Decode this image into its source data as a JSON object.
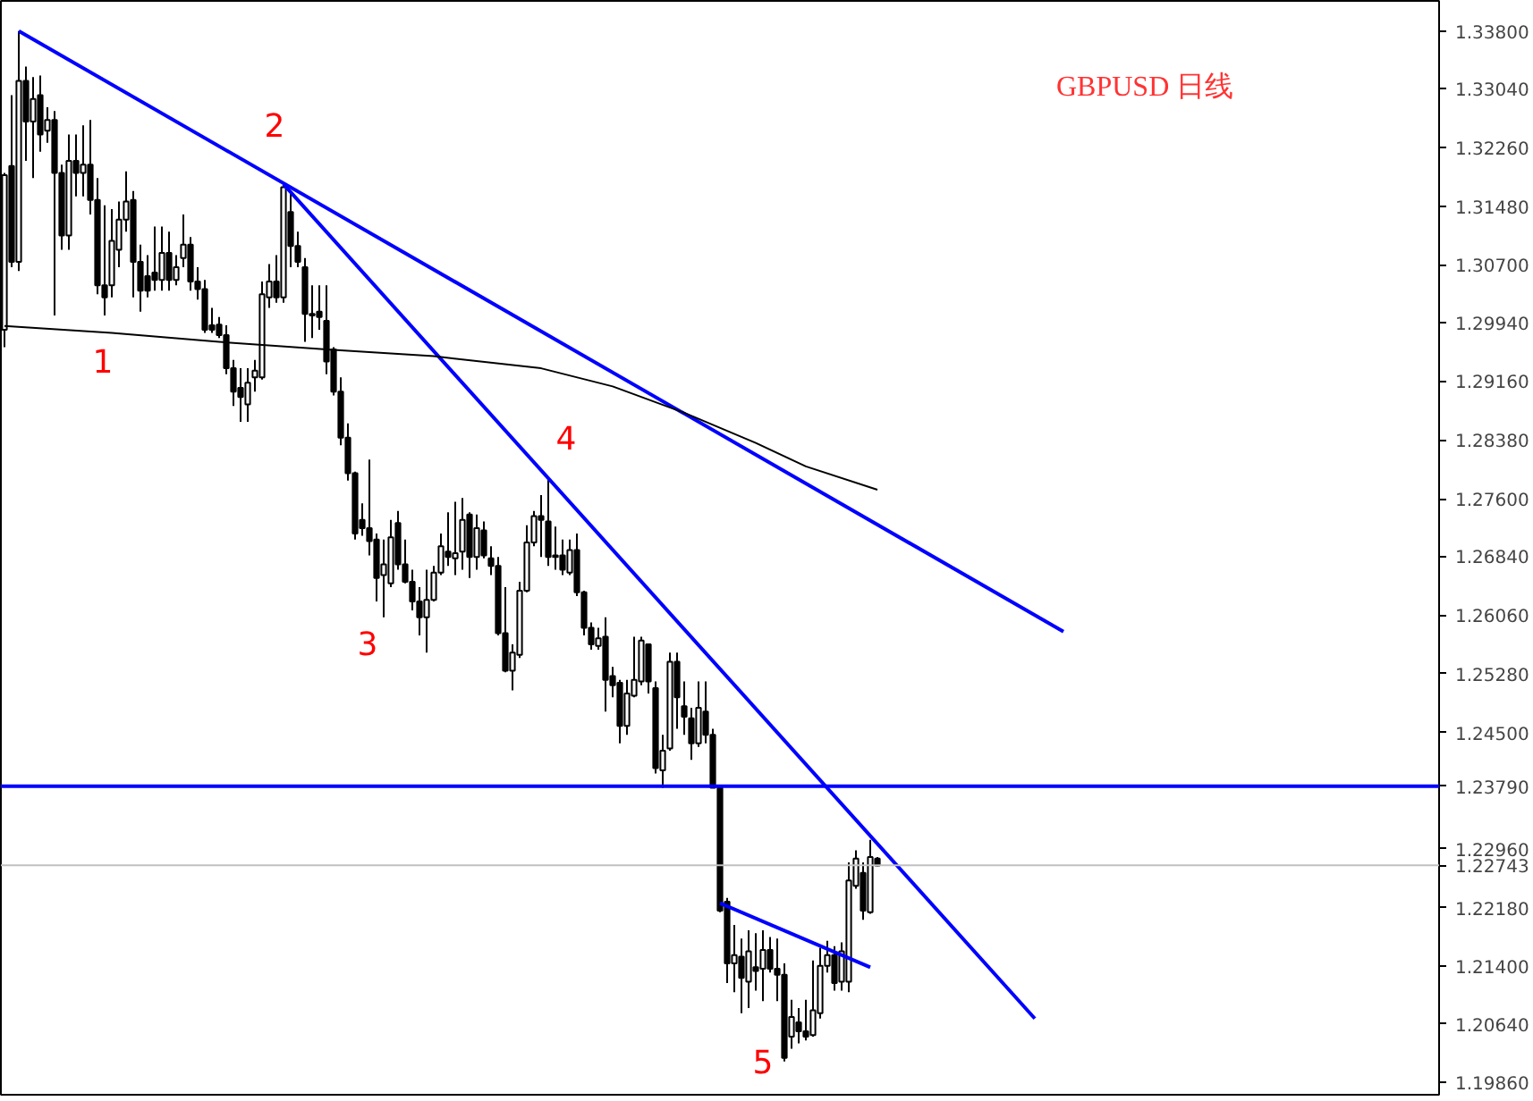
{
  "chart_data": {
    "type": "candlestick",
    "title": "GBPUSD 日线",
    "categories": [
      null,
      null,
      null,
      null,
      null,
      null,
      null,
      null,
      null,
      null,
      null,
      null,
      null,
      null,
      null,
      null,
      null,
      null,
      null,
      null,
      null,
      null,
      null,
      null,
      null,
      null,
      null,
      null,
      null,
      null,
      null,
      null,
      null,
      null,
      null,
      null,
      null,
      null,
      null,
      null,
      null,
      null,
      null,
      null,
      null,
      null,
      null,
      null,
      null,
      null,
      null,
      null,
      null,
      null,
      null,
      null,
      null,
      null,
      null,
      null,
      null,
      null,
      null,
      null,
      null,
      null,
      null,
      null,
      null,
      null,
      null,
      null,
      null,
      null,
      null,
      null,
      null,
      null,
      null,
      null,
      null,
      null,
      null,
      null,
      null,
      null,
      null,
      null,
      null,
      null,
      null,
      null,
      null,
      null,
      null,
      null,
      null,
      null,
      null,
      null,
      null,
      null,
      null,
      null,
      null,
      null,
      null,
      null,
      null,
      null,
      null,
      null,
      null,
      null,
      null,
      null,
      null,
      null,
      null,
      null,
      null,
      null,
      null,
      null,
      null,
      null,
      null,
      null,
      null,
      null,
      null,
      null,
      null,
      null,
      null,
      null,
      null,
      null,
      null,
      null,
      null,
      null,
      null,
      null,
      null,
      null,
      null,
      null,
      null,
      null,
      null,
      null,
      null,
      null,
      null,
      null,
      null,
      null,
      null,
      null,
      null,
      null,
      null,
      null,
      null,
      null,
      null,
      null,
      null,
      null,
      null,
      null,
      null,
      null,
      null,
      null,
      null,
      null,
      null,
      null,
      null,
      null,
      null,
      null,
      null,
      null,
      null,
      null,
      null,
      null,
      null,
      null,
      null,
      null,
      null,
      null,
      null,
      null,
      null,
      null,
      null
    ],
    "ohlc": [
      [
        1.2984,
        1.3192,
        1.2961,
        1.3189
      ],
      [
        1.3201,
        1.3295,
        1.3067,
        1.3074
      ],
      [
        1.3074,
        1.338,
        1.3062,
        1.3314
      ],
      [
        1.3314,
        1.3333,
        1.3208,
        1.326
      ],
      [
        1.326,
        1.3319,
        1.3185,
        1.329
      ],
      [
        1.3295,
        1.3321,
        1.322,
        1.3243
      ],
      [
        1.3248,
        1.3279,
        1.3232,
        1.3262
      ],
      [
        1.3262,
        1.3274,
        1.3003,
        1.3192
      ],
      [
        1.3192,
        1.3203,
        1.309,
        1.3109
      ],
      [
        1.3109,
        1.3243,
        1.309,
        1.3208
      ],
      [
        1.3208,
        1.3243,
        1.3161,
        1.3192
      ],
      [
        1.3192,
        1.3255,
        1.3161,
        1.3203
      ],
      [
        1.3203,
        1.3262,
        1.3137,
        1.3156
      ],
      [
        1.3156,
        1.3185,
        1.3031,
        1.3043
      ],
      [
        1.3043,
        1.3149,
        1.3003,
        1.3027
      ],
      [
        1.3043,
        1.3144,
        1.3027,
        1.3102
      ],
      [
        1.309,
        1.3154,
        1.3067,
        1.313
      ],
      [
        1.313,
        1.3194,
        1.3114,
        1.3154
      ],
      [
        1.3156,
        1.3168,
        1.3027,
        1.3074
      ],
      [
        1.3074,
        1.3097,
        1.3008,
        1.3036
      ],
      [
        1.3055,
        1.3083,
        1.3027,
        1.3036
      ],
      [
        1.306,
        1.3121,
        1.3036,
        1.305
      ],
      [
        1.305,
        1.3121,
        1.3036,
        1.3086
      ],
      [
        1.3086,
        1.3114,
        1.3036,
        1.305
      ],
      [
        1.305,
        1.3083,
        1.3043,
        1.3067
      ],
      [
        1.3079,
        1.3137,
        1.3067,
        1.3097
      ],
      [
        1.3097,
        1.3107,
        1.3036,
        1.3048
      ],
      [
        1.3048,
        1.3067,
        1.3024,
        1.3038
      ],
      [
        1.3038,
        1.305,
        1.298,
        1.2984
      ],
      [
        1.299,
        1.3013,
        1.298,
        1.2984
      ],
      [
        1.2991,
        1.3001,
        1.2973,
        1.2977
      ],
      [
        1.2977,
        1.299,
        1.2925,
        1.2933
      ],
      [
        1.2933,
        1.2944,
        1.2883,
        1.2902
      ],
      [
        1.2907,
        1.2933,
        1.2862,
        1.2895
      ],
      [
        1.2885,
        1.2933,
        1.2862,
        1.2914
      ],
      [
        1.2921,
        1.2944,
        1.2902,
        1.293
      ],
      [
        1.2921,
        1.3048,
        1.2918,
        1.3031
      ],
      [
        1.3027,
        1.3071,
        1.3013,
        1.3048
      ],
      [
        1.3048,
        1.3083,
        1.302,
        1.3027
      ],
      [
        1.3027,
        1.3177,
        1.302,
        1.3173
      ],
      [
        1.314,
        1.3168,
        1.3067,
        1.3095
      ],
      [
        1.3095,
        1.3114,
        1.3067,
        1.3074
      ],
      [
        1.3067,
        1.3079,
        1.2968,
        1.3005
      ],
      [
        1.3005,
        1.3043,
        1.2973,
        1.3003
      ],
      [
        1.3008,
        1.3043,
        1.2984,
        1.3001
      ],
      [
        1.2996,
        1.3043,
        1.2925,
        1.2942
      ],
      [
        1.2958,
        1.2961,
        1.2897,
        1.2902
      ],
      [
        1.2902,
        1.2921,
        1.2831,
        1.2841
      ],
      [
        1.2841,
        1.286,
        1.2784,
        1.2794
      ],
      [
        1.2794,
        1.2796,
        1.2706,
        1.2714
      ],
      [
        1.2732,
        1.2754,
        1.2711,
        1.2721
      ],
      [
        1.2721,
        1.2812,
        1.2685,
        1.2704
      ],
      [
        1.2706,
        1.2714,
        1.2624,
        1.2655
      ],
      [
        1.2659,
        1.2706,
        1.2603,
        1.2673
      ],
      [
        1.2648,
        1.2732,
        1.2643,
        1.2709
      ],
      [
        1.2728,
        1.2744,
        1.2666,
        1.2673
      ],
      [
        1.2673,
        1.2706,
        1.2648,
        1.265
      ],
      [
        1.265,
        1.2666,
        1.2612,
        1.2624
      ],
      [
        1.2624,
        1.2643,
        1.2579,
        1.2603
      ],
      [
        1.2603,
        1.2666,
        1.2556,
        1.2626
      ],
      [
        1.2626,
        1.2671,
        1.2624,
        1.2662
      ],
      [
        1.2662,
        1.2714,
        1.2659,
        1.2697
      ],
      [
        1.269,
        1.2742,
        1.2671,
        1.2683
      ],
      [
        1.2681,
        1.2756,
        1.2659,
        1.2688
      ],
      [
        1.269,
        1.2761,
        1.2666,
        1.2732
      ],
      [
        1.2739,
        1.2742,
        1.2655,
        1.2683
      ],
      [
        1.2683,
        1.2739,
        1.2666,
        1.2721
      ],
      [
        1.2718,
        1.273,
        1.2681,
        1.2685
      ],
      [
        1.2681,
        1.2697,
        1.2659,
        1.2671
      ],
      [
        1.2671,
        1.2683,
        1.2579,
        1.2582
      ],
      [
        1.2582,
        1.2643,
        1.253,
        1.2532
      ],
      [
        1.2532,
        1.2567,
        1.2506,
        1.2556
      ],
      [
        1.2553,
        1.265,
        1.2549,
        1.2638
      ],
      [
        1.2638,
        1.2725,
        1.2636,
        1.2702
      ],
      [
        1.2702,
        1.2744,
        1.2697,
        1.2737
      ],
      [
        1.2737,
        1.2765,
        1.2683,
        1.2732
      ],
      [
        1.273,
        1.2789,
        1.2671,
        1.2683
      ],
      [
        1.2685,
        1.2723,
        1.2666,
        1.2683
      ],
      [
        1.2685,
        1.2706,
        1.2659,
        1.2666
      ],
      [
        1.2662,
        1.2706,
        1.2659,
        1.2692
      ],
      [
        1.2692,
        1.2714,
        1.2631,
        1.2636
      ],
      [
        1.2636,
        1.2638,
        1.2579,
        1.2589
      ],
      [
        1.2589,
        1.2596,
        1.256,
        1.2567
      ],
      [
        1.2565,
        1.2589,
        1.256,
        1.2575
      ],
      [
        1.2577,
        1.2603,
        1.2478,
        1.252
      ],
      [
        1.2525,
        1.2537,
        1.2497,
        1.2513
      ],
      [
        1.2516,
        1.252,
        1.2436,
        1.2459
      ],
      [
        1.2459,
        1.252,
        1.2447,
        1.2502
      ],
      [
        1.2499,
        1.2577,
        1.2497,
        1.252
      ],
      [
        1.2518,
        1.2577,
        1.2513,
        1.2572
      ],
      [
        1.2567,
        1.2567,
        1.2502,
        1.2518
      ],
      [
        1.2509,
        1.2518,
        1.2396,
        1.2403
      ],
      [
        1.24,
        1.2447,
        1.2377,
        1.2426
      ],
      [
        1.2429,
        1.2556,
        1.2426,
        1.2544
      ],
      [
        1.2544,
        1.2556,
        1.2455,
        1.2497
      ],
      [
        1.2485,
        1.2518,
        1.2447,
        1.2471
      ],
      [
        1.2469,
        1.2483,
        1.2414,
        1.2436
      ],
      [
        1.2436,
        1.2518,
        1.2431,
        1.2483
      ],
      [
        1.2478,
        1.2518,
        1.2436,
        1.2447
      ],
      [
        1.2447,
        1.2455,
        1.2377,
        1.2377
      ],
      [
        1.2377,
        1.2379,
        1.2212,
        1.2214
      ],
      [
        1.2226,
        1.2231,
        1.2118,
        1.2144
      ],
      [
        1.2144,
        1.2195,
        1.2106,
        1.2155
      ],
      [
        1.2153,
        1.2177,
        1.2078,
        1.2125
      ],
      [
        1.212,
        1.2188,
        1.2085,
        1.216
      ],
      [
        1.2139,
        1.2184,
        1.2108,
        1.2134
      ],
      [
        1.2137,
        1.2188,
        1.2094,
        1.2162
      ],
      [
        1.2162,
        1.2179,
        1.2132,
        1.2137
      ],
      [
        1.2137,
        1.2177,
        1.2094,
        1.2129
      ],
      [
        1.2129,
        1.2144,
        1.2014,
        1.2019
      ],
      [
        1.2047,
        1.2096,
        1.2031,
        1.2073
      ],
      [
        1.2066,
        1.2085,
        1.2038,
        1.2054
      ],
      [
        1.2054,
        1.2096,
        1.2042,
        1.2047
      ],
      [
        1.2049,
        1.2148,
        1.2047,
        1.2082
      ],
      [
        1.2078,
        1.2165,
        1.2071,
        1.2141
      ],
      [
        1.2141,
        1.2174,
        1.2132,
        1.2155
      ],
      [
        1.2155,
        1.2167,
        1.2108,
        1.2118
      ],
      [
        1.212,
        1.2172,
        1.2108,
        1.216
      ],
      [
        1.212,
        1.2278,
        1.2106,
        1.2254
      ],
      [
        1.2247,
        1.2294,
        1.2243,
        1.2283
      ],
      [
        1.2264,
        1.2278,
        1.2202,
        1.2214
      ],
      [
        1.2212,
        1.2308,
        1.221,
        1.2285
      ],
      [
        1.2283,
        1.2285,
        1.2273,
        1.2274
      ],
      null,
      null,
      null,
      null,
      null,
      null,
      null,
      null,
      null,
      null,
      null,
      null,
      null,
      null,
      null,
      null,
      null,
      null,
      null,
      null,
      null,
      null,
      null,
      null,
      null,
      null,
      null,
      null,
      null,
      null,
      null,
      null,
      null,
      null,
      null,
      null,
      null,
      null,
      null,
      null,
      null,
      null,
      null,
      null,
      null,
      null,
      null,
      null,
      null,
      null,
      null,
      null,
      null,
      null,
      null,
      null,
      null,
      null,
      null,
      null,
      null,
      null,
      null,
      null,
      null,
      null,
      null,
      null,
      null,
      null,
      null,
      null,
      null,
      null,
      null,
      null,
      null,
      null
    ],
    "color": "#000000",
    "series": [
      {
        "type": "line",
        "color": "#0000ff",
        "values": [
          null,
          null,
          1.338,
          null,
          null,
          null,
          null,
          null,
          null,
          null,
          null,
          null,
          null,
          null,
          null,
          null,
          null,
          null,
          null,
          null,
          null,
          null,
          null,
          null,
          null,
          null,
          null,
          null,
          null,
          null,
          null,
          null,
          null,
          null,
          null,
          null,
          null,
          null,
          null,
          null,
          null,
          null,
          null,
          null,
          null,
          null,
          null,
          null,
          null,
          null,
          null,
          null,
          null,
          null,
          null,
          null,
          null,
          null,
          null,
          null,
          null,
          null,
          null,
          null,
          null,
          null,
          null,
          null,
          null,
          null,
          null,
          null,
          null,
          null,
          null,
          null,
          null,
          null,
          null,
          null,
          null,
          null,
          null,
          null,
          null,
          null,
          null,
          null,
          null,
          null,
          null,
          null,
          null,
          null,
          null,
          null,
          null,
          null,
          null,
          null,
          null,
          null,
          null,
          null,
          null,
          null,
          null,
          null,
          null,
          null,
          null,
          null,
          null,
          null,
          null,
          null,
          null,
          null,
          null,
          null,
          null,
          null,
          null,
          null,
          null,
          null,
          null,
          null,
          null,
          null,
          null,
          null,
          null,
          null,
          null,
          null,
          null,
          null,
          null,
          null,
          null,
          null,
          null,
          null,
          null,
          null,
          null,
          null,
          1.2584,
          null,
          null,
          null,
          null,
          null,
          null,
          null,
          null,
          null,
          null,
          null,
          null,
          null,
          null,
          null,
          null,
          null,
          null,
          null,
          null,
          null,
          null,
          null,
          null,
          null,
          null,
          null,
          null,
          null,
          null,
          null,
          null,
          null,
          null,
          null,
          null,
          null,
          null,
          null,
          null,
          null,
          null,
          null,
          null,
          null,
          null,
          null,
          null,
          null,
          null,
          null,
          null
        ]
      },
      {
        "type": "line",
        "color": "#0000ff",
        "values": [
          null,
          null,
          null,
          null,
          null,
          null,
          null,
          null,
          null,
          null,
          null,
          null,
          null,
          null,
          null,
          null,
          null,
          null,
          null,
          null,
          null,
          null,
          null,
          null,
          null,
          null,
          null,
          null,
          null,
          null,
          null,
          null,
          null,
          null,
          null,
          null,
          null,
          null,
          null,
          1.3177,
          null,
          null,
          null,
          null,
          null,
          null,
          null,
          null,
          null,
          null,
          null,
          null,
          null,
          null,
          null,
          null,
          null,
          null,
          null,
          null,
          null,
          null,
          null,
          null,
          null,
          null,
          null,
          null,
          null,
          null,
          null,
          null,
          null,
          null,
          null,
          null,
          null,
          null,
          null,
          null,
          null,
          null,
          null,
          null,
          null,
          null,
          null,
          null,
          null,
          null,
          null,
          null,
          null,
          null,
          null,
          null,
          null,
          null,
          null,
          null,
          null,
          null,
          null,
          null,
          null,
          null,
          null,
          null,
          null,
          null,
          null,
          null,
          null,
          null,
          null,
          null,
          null,
          null,
          null,
          null,
          null,
          null,
          null,
          null,
          null,
          null,
          null,
          null,
          null,
          null,
          null,
          null,
          null,
          null,
          null,
          null,
          null,
          null,
          null,
          null,
          null,
          null,
          null,
          null,
          1.2071,
          null,
          null,
          null,
          null,
          null,
          null,
          null,
          null,
          null,
          null,
          null,
          null,
          null,
          null,
          null,
          null,
          null,
          null,
          null,
          null,
          null,
          null,
          null,
          null,
          null,
          null,
          null,
          null,
          null,
          null,
          null,
          null,
          null,
          null,
          null,
          null,
          null,
          null,
          null,
          null,
          null,
          null,
          null,
          null,
          null,
          null,
          null,
          null,
          null,
          null,
          null,
          null,
          null,
          null,
          null,
          null
        ]
      },
      {
        "type": "line",
        "color": "#0000ff",
        "values": [
          null,
          null,
          null,
          null,
          null,
          null,
          null,
          null,
          null,
          null,
          null,
          null,
          null,
          null,
          null,
          null,
          null,
          null,
          null,
          null,
          null,
          null,
          null,
          null,
          null,
          null,
          null,
          null,
          null,
          null,
          null,
          null,
          null,
          null,
          null,
          null,
          null,
          null,
          null,
          null,
          null,
          null,
          null,
          null,
          null,
          null,
          null,
          null,
          null,
          null,
          null,
          null,
          null,
          null,
          null,
          null,
          null,
          null,
          null,
          null,
          null,
          null,
          null,
          null,
          null,
          null,
          null,
          null,
          null,
          null,
          null,
          null,
          null,
          null,
          null,
          null,
          null,
          null,
          null,
          null,
          null,
          null,
          null,
          null,
          null,
          null,
          null,
          null,
          null,
          null,
          null,
          null,
          null,
          null,
          null,
          null,
          null,
          null,
          null,
          null,
          1.2224,
          null,
          null,
          null,
          null,
          null,
          null,
          null,
          null,
          null,
          null,
          null,
          null,
          null,
          null,
          null,
          null,
          null,
          null,
          null,
          null,
          1.2139,
          null,
          null,
          null,
          null,
          null,
          null,
          null,
          null,
          null,
          null,
          null,
          null,
          null,
          null,
          null,
          null,
          null,
          null,
          null,
          null,
          null,
          null,
          null,
          null,
          null,
          null,
          null,
          null,
          null,
          null,
          null,
          null,
          null,
          null,
          null,
          null,
          null,
          null,
          null,
          null,
          null,
          null,
          null,
          null,
          null,
          null,
          null,
          null,
          null,
          null,
          null,
          null,
          null,
          null,
          null,
          null,
          null,
          null,
          null,
          null,
          null,
          null,
          null,
          null,
          null,
          null,
          null,
          null,
          null,
          null,
          null,
          null,
          null,
          null,
          null,
          null,
          null,
          null,
          null
        ]
      },
      {
        "type": "line",
        "color": "#000000",
        "values": [
          1.2989,
          null,
          null,
          null,
          null,
          null,
          null,
          null,
          null,
          null,
          null,
          null,
          null,
          null,
          null,
          1.298,
          null,
          null,
          null,
          null,
          null,
          null,
          null,
          null,
          null,
          null,
          null,
          null,
          null,
          null,
          1.2968,
          null,
          null,
          null,
          null,
          null,
          null,
          null,
          null,
          null,
          null,
          null,
          null,
          null,
          null,
          1.2958,
          null,
          null,
          null,
          null,
          null,
          null,
          null,
          null,
          null,
          null,
          null,
          null,
          null,
          null,
          1.2949,
          null,
          null,
          null,
          null,
          null,
          null,
          null,
          null,
          null,
          null,
          null,
          null,
          null,
          null,
          1.2933,
          null,
          null,
          null,
          null,
          null,
          null,
          null,
          null,
          null,
          1.2909,
          null,
          null,
          null,
          null,
          null,
          null,
          null,
          null,
          null,
          1.2874,
          null,
          null,
          null,
          null,
          null,
          null,
          null,
          null,
          null,
          1.2834,
          null,
          null,
          null,
          null,
          null,
          null,
          1.2803,
          null,
          null,
          null,
          null,
          null,
          null,
          null,
          null,
          null,
          1.2772,
          null,
          null,
          null,
          null,
          null,
          null,
          null,
          null,
          null,
          null,
          null,
          null,
          null,
          null,
          null,
          null,
          null,
          null,
          null,
          null,
          null,
          null,
          null,
          null,
          null,
          null,
          null,
          null,
          null,
          null,
          null,
          null,
          null,
          null,
          null,
          null,
          null,
          null,
          null,
          null,
          null,
          null,
          null,
          null,
          null,
          null,
          null,
          null,
          null,
          null,
          null,
          null,
          null,
          null,
          null,
          null,
          null,
          null,
          null,
          null,
          null,
          null,
          null,
          null,
          null,
          null,
          null,
          null,
          null,
          null,
          null,
          null,
          null,
          null,
          null,
          null,
          null,
          null
        ]
      }
    ],
    "ref_lines": [
      {
        "axis": "y",
        "value": 1.2379,
        "label": "1.23790",
        "color": "#0000ff"
      },
      {
        "axis": "y",
        "value": 1.22743,
        "label": "1.22743",
        "color": "#c0c0c0"
      }
    ],
    "annotations": [
      "1",
      "2",
      "3",
      "4",
      "5"
    ],
    "ylim": [
      1.197,
      1.342
    ],
    "yticks": [
      {
        "value": 1.338,
        "label": "1.33800"
      },
      {
        "value": 1.3304,
        "label": "1.33040"
      },
      {
        "value": 1.3226,
        "label": "1.32260"
      },
      {
        "value": 1.3148,
        "label": "1.31480"
      },
      {
        "value": 1.307,
        "label": "1.30700"
      },
      {
        "value": 1.2994,
        "label": "1.29940"
      },
      {
        "value": 1.2916,
        "label": "1.29160"
      },
      {
        "value": 1.2838,
        "label": "1.28380"
      },
      {
        "value": 1.276,
        "label": "1.27600"
      },
      {
        "value": 1.2684,
        "label": "1.26840"
      },
      {
        "value": 1.2606,
        "label": "1.26060"
      },
      {
        "value": 1.2528,
        "label": "1.25280"
      },
      {
        "value": 1.245,
        "label": "1.24500"
      },
      {
        "value": 1.2296,
        "label": "1.22960"
      },
      {
        "value": 1.2218,
        "label": "1.22180"
      },
      {
        "value": 1.214,
        "label": "1.21400"
      },
      {
        "value": 1.2064,
        "label": "1.20640"
      },
      {
        "value": 1.1986,
        "label": "1.19860"
      }
    ],
    "tick_labels": "y"
  }
}
